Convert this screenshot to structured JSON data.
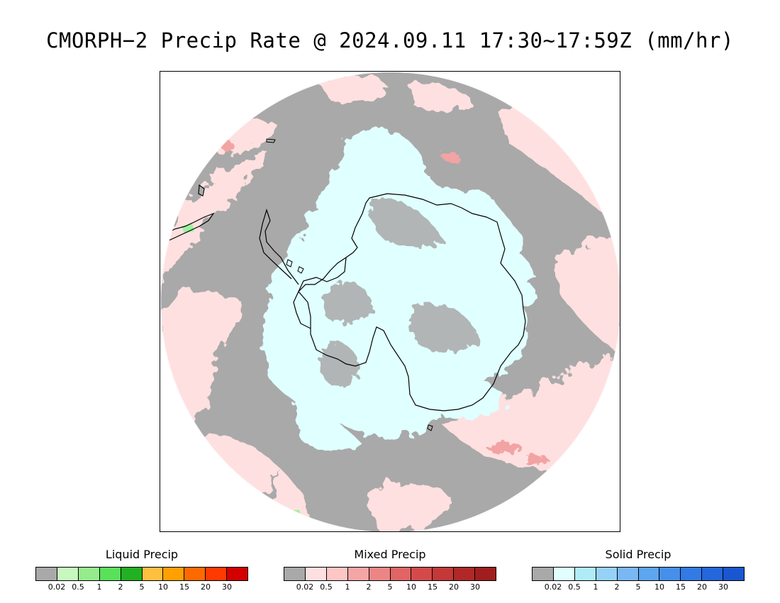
{
  "title": "CMORPH−2 Precip Rate @ 2024.09.11 17:30~17:59Z (mm/hr)",
  "map": {
    "projection": "south-polar-stereographic",
    "colors": {
      "no_precip": "#a9a9a9",
      "mixed_light": "#ffe0e0",
      "mixed_moderate": "#f2a3a3",
      "solid_light": "#e0ffff",
      "liquid_light": "#a0f0a0",
      "coastline": "#000000"
    }
  },
  "legends": [
    {
      "title": "Liquid Precip",
      "colors": [
        "#a9a9a9",
        "#c8f7c0",
        "#96ec8c",
        "#5ae05a",
        "#23b023",
        "#ffbf40",
        "#ffa000",
        "#ff6a00",
        "#ff3a00",
        "#d20000"
      ],
      "ticks": [
        "0.02",
        "0.5",
        "1",
        "2",
        "5",
        "10",
        "15",
        "20",
        "30"
      ]
    },
    {
      "title": "Mixed Precip",
      "colors": [
        "#a9a9a9",
        "#ffe0e0",
        "#ffc6c6",
        "#f4a6a6",
        "#ec8686",
        "#e06565",
        "#d44a4a",
        "#c43838",
        "#b02828",
        "#a01e1e"
      ],
      "ticks": [
        "0.02",
        "0.5",
        "1",
        "2",
        "5",
        "10",
        "15",
        "20",
        "30"
      ]
    },
    {
      "title": "Solid Precip",
      "colors": [
        "#a9a9a9",
        "#e0ffff",
        "#b0ecf8",
        "#96d2f8",
        "#7ab8f4",
        "#5ea6f0",
        "#4690ec",
        "#327ae4",
        "#2466dc",
        "#1a56d0"
      ],
      "ticks": [
        "0.02",
        "0.5",
        "1",
        "2",
        "5",
        "10",
        "15",
        "20",
        "30"
      ]
    }
  ]
}
